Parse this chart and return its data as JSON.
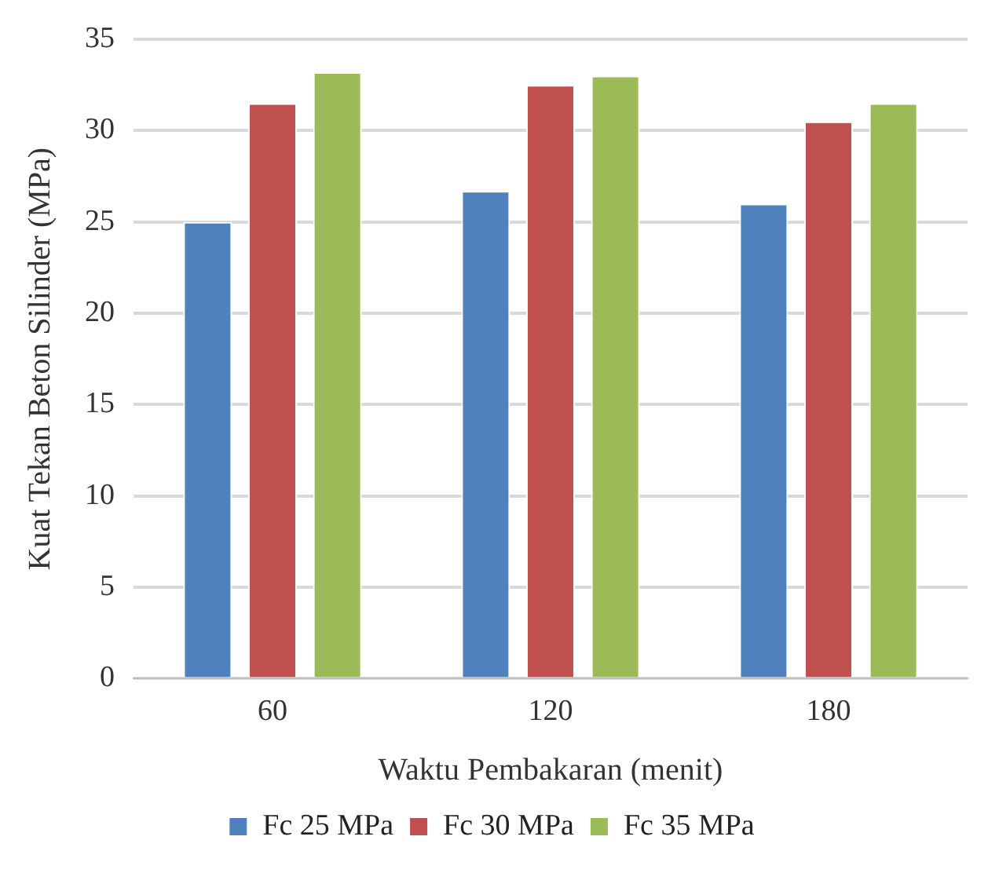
{
  "chart_data": {
    "type": "bar",
    "xlabel": "Waktu Pembakaran (menit)",
    "ylabel": "Kuat Tekan Beton Silinder (MPa)",
    "categories": [
      "60",
      "120",
      "180"
    ],
    "series": [
      {
        "name": "Fc 25 MPa",
        "color": "#4f81bd",
        "values": [
          25.0,
          26.7,
          26.0
        ]
      },
      {
        "name": "Fc 30 MPa",
        "color": "#c0504d",
        "values": [
          31.5,
          32.5,
          30.5
        ]
      },
      {
        "name": "Fc 35 MPa",
        "color": "#9bbb59",
        "values": [
          33.2,
          33.0,
          31.5
        ]
      }
    ],
    "ylim": [
      0,
      35
    ],
    "yticks": [
      0,
      5,
      10,
      15,
      20,
      25,
      30,
      35
    ],
    "grid": "y",
    "legend": "bottom"
  }
}
